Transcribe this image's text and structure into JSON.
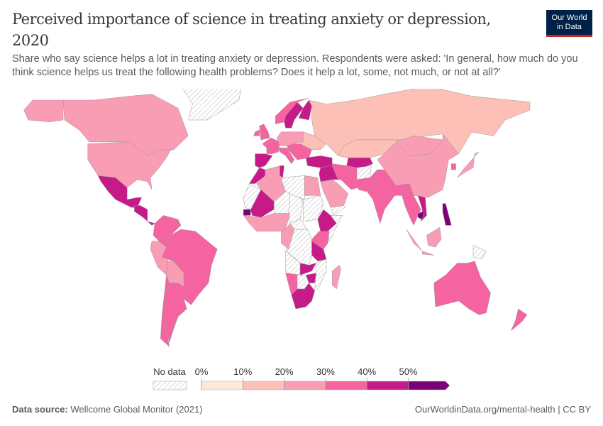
{
  "title": "Perceived importance of science in treating anxiety or depression, 2020",
  "subtitle": "Share who say science helps a lot in treating anxiety or depression. Respondents were asked: 'In general, how much do you think science helps us treat the following health problems? Does it help a lot, some, not much, or not at all?'",
  "logo": {
    "line1": "Our World",
    "line2": "in Data"
  },
  "footer": {
    "source_label": "Data source:",
    "source": "Wellcome Global Monitor (2021)",
    "url": "OurWorldinData.org/mental-health | CC BY"
  },
  "chart_data": {
    "type": "choropleth-map",
    "legend": {
      "no_data_label": "No data",
      "ticks": [
        "0%",
        "10%",
        "20%",
        "30%",
        "40%",
        "50%"
      ],
      "bins": [
        {
          "range": "0–10%",
          "color": "#fee8dd"
        },
        {
          "range": "10–20%",
          "color": "#fcc0b6"
        },
        {
          "range": "20–30%",
          "color": "#f99db5"
        },
        {
          "range": "30–40%",
          "color": "#f564a0"
        },
        {
          "range": "40–50%",
          "color": "#c71a89"
        },
        {
          "range": ">50%",
          "color": "#7a0177"
        }
      ],
      "no_data_color": "#eeeeee"
    },
    "countries": [
      {
        "name": "Canada",
        "bin": 2
      },
      {
        "name": "Alaska",
        "bin": 2
      },
      {
        "name": "United States",
        "bin": 2
      },
      {
        "name": "Greenland",
        "bin": null
      },
      {
        "name": "Mexico",
        "bin": 4
      },
      {
        "name": "Central America",
        "bin": 4
      },
      {
        "name": "Colombia/Venezuela",
        "bin": 3
      },
      {
        "name": "Peru/Ecuador",
        "bin": 2
      },
      {
        "name": "Brazil",
        "bin": 3
      },
      {
        "name": "Bolivia/Paraguay",
        "bin": 2
      },
      {
        "name": "Argentina",
        "bin": 3
      },
      {
        "name": "Chile",
        "bin": 3
      },
      {
        "name": "United Kingdom",
        "bin": 3
      },
      {
        "name": "Ireland",
        "bin": 3
      },
      {
        "name": "Spain/Portugal",
        "bin": 4
      },
      {
        "name": "France",
        "bin": 3
      },
      {
        "name": "Central Europe",
        "bin": 2
      },
      {
        "name": "Italy",
        "bin": 3
      },
      {
        "name": "Norway",
        "bin": 3
      },
      {
        "name": "Sweden",
        "bin": 4
      },
      {
        "name": "Finland",
        "bin": 4
      },
      {
        "name": "Ukraine/Belarus",
        "bin": 1
      },
      {
        "name": "Balkans",
        "bin": 3
      },
      {
        "name": "Turkey",
        "bin": 4
      },
      {
        "name": "Russia",
        "bin": 1
      },
      {
        "name": "Kazakhstan",
        "bin": 1
      },
      {
        "name": "Uzbekistan/Turkmenistan",
        "bin": 4
      },
      {
        "name": "Iran",
        "bin": 3
      },
      {
        "name": "Afghanistan",
        "bin": null
      },
      {
        "name": "Pakistan",
        "bin": 3
      },
      {
        "name": "Saudi Arabia",
        "bin": 2
      },
      {
        "name": "Iraq/Syria/Jordan",
        "bin": 4
      },
      {
        "name": "Yemen",
        "bin": null
      },
      {
        "name": "India",
        "bin": 3
      },
      {
        "name": "China",
        "bin": 2
      },
      {
        "name": "Mongolia",
        "bin": 2
      },
      {
        "name": "Japan",
        "bin": 2
      },
      {
        "name": "South Korea",
        "bin": 3
      },
      {
        "name": "Myanmar/Thailand",
        "bin": 3
      },
      {
        "name": "Vietnam",
        "bin": 4
      },
      {
        "name": "Cambodia",
        "bin": 5
      },
      {
        "name": "Philippines",
        "bin": 5
      },
      {
        "name": "Sumatra",
        "bin": 2
      },
      {
        "name": "Borneo",
        "bin": 2
      },
      {
        "name": "Java",
        "bin": 2
      },
      {
        "name": "Papua New Guinea",
        "bin": null
      },
      {
        "name": "Australia",
        "bin": 3
      },
      {
        "name": "New Zealand",
        "bin": 3
      },
      {
        "name": "Morocco",
        "bin": 4
      },
      {
        "name": "Algeria",
        "bin": 2
      },
      {
        "name": "Tunisia",
        "bin": 4
      },
      {
        "name": "Libya",
        "bin": null
      },
      {
        "name": "Egypt",
        "bin": 2
      },
      {
        "name": "Mali",
        "bin": 4
      },
      {
        "name": "Mauritania",
        "bin": null
      },
      {
        "name": "Senegal",
        "bin": 5
      },
      {
        "name": "Niger",
        "bin": null
      },
      {
        "name": "Chad",
        "bin": null
      },
      {
        "name": "Sudan",
        "bin": null
      },
      {
        "name": "West Africa",
        "bin": 2
      },
      {
        "name": "Ethiopia",
        "bin": 4
      },
      {
        "name": "Somalia",
        "bin": null
      },
      {
        "name": "DR Congo",
        "bin": null
      },
      {
        "name": "Central African Republic",
        "bin": null
      },
      {
        "name": "Cameroon/Gabon/Congo",
        "bin": 2
      },
      {
        "name": "Kenya/Uganda",
        "bin": 3
      },
      {
        "name": "Tanzania",
        "bin": 4
      },
      {
        "name": "Angola",
        "bin": null
      },
      {
        "name": "Zambia",
        "bin": 4
      },
      {
        "name": "Mozambique",
        "bin": null
      },
      {
        "name": "Zimbabwe",
        "bin": 4
      },
      {
        "name": "Namibia",
        "bin": 3
      },
      {
        "name": "Botswana",
        "bin": null
      },
      {
        "name": "South Africa",
        "bin": 4
      },
      {
        "name": "Madagascar",
        "bin": 2
      }
    ]
  }
}
